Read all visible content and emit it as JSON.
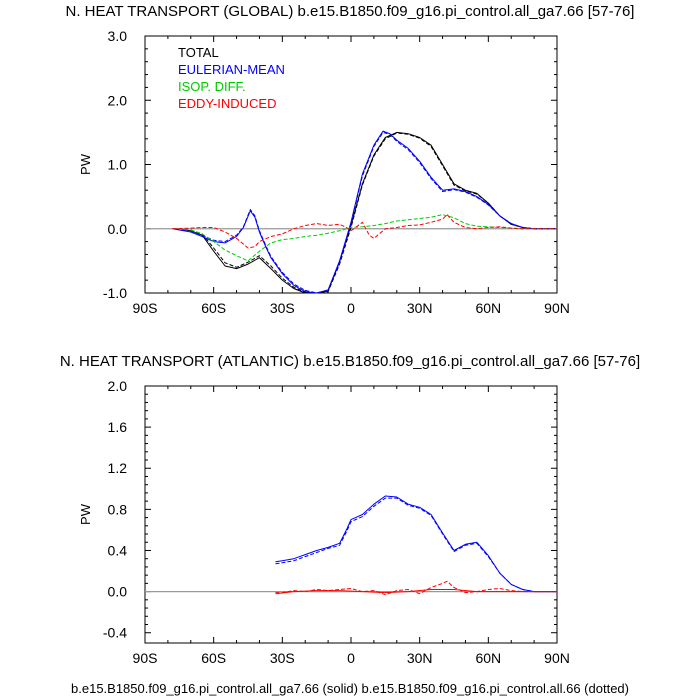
{
  "footer": "b.e15.B1850.f09_g16.pi_control.all_ga7.66 (solid) b.e15.B1850.f09_g16.pi_control.all.66 (dotted)",
  "chart_data": [
    {
      "type": "line",
      "title": "N. HEAT TRANSPORT (GLOBAL) b.e15.B1850.f09_g16.pi_control.all_ga7.66 [57-76]",
      "ylabel": "PW",
      "xlim": [
        -90,
        90
      ],
      "ylim": [
        -1,
        3
      ],
      "xticks": [
        {
          "v": -90,
          "label": "90S"
        },
        {
          "v": -60,
          "label": "60S"
        },
        {
          "v": -30,
          "label": "30S"
        },
        {
          "v": 0,
          "label": "0"
        },
        {
          "v": 30,
          "label": "30N"
        },
        {
          "v": 60,
          "label": "60N"
        },
        {
          "v": 90,
          "label": "90N"
        }
      ],
      "yticks": [
        {
          "v": -1,
          "label": "-1.0"
        },
        {
          "v": 0,
          "label": "0.0"
        },
        {
          "v": 1,
          "label": "1.0"
        },
        {
          "v": 2,
          "label": "2.0"
        },
        {
          "v": 3,
          "label": "3.0"
        }
      ],
      "legend": [
        {
          "label": "TOTAL",
          "color": "#000000"
        },
        {
          "label": "EULERIAN-MEAN",
          "color": "#0000ff"
        },
        {
          "label": "ISOP. DIFF.",
          "color": "#00cc00"
        },
        {
          "label": "EDDY-INDUCED",
          "color": "#ff0000"
        }
      ],
      "legend_position": "top-left",
      "zero_line": true,
      "series": [
        {
          "color": "#000000",
          "style": "solid",
          "x": [
            -78,
            -70,
            -65,
            -60,
            -55,
            -50,
            -45,
            -40,
            -35,
            -30,
            -25,
            -20,
            -15,
            -10,
            -5,
            0,
            5,
            10,
            15,
            20,
            25,
            30,
            35,
            40,
            45,
            50,
            55,
            60,
            65,
            70,
            75,
            80,
            85,
            90
          ],
          "y": [
            0,
            -0.03,
            -0.1,
            -0.35,
            -0.58,
            -0.62,
            -0.55,
            -0.45,
            -0.62,
            -0.8,
            -0.93,
            -1.0,
            -1.02,
            -0.97,
            -0.5,
            0.05,
            0.7,
            1.15,
            1.42,
            1.5,
            1.48,
            1.42,
            1.3,
            1.0,
            0.7,
            0.6,
            0.55,
            0.4,
            0.2,
            0.07,
            0.02,
            0,
            0,
            0
          ]
        },
        {
          "color": "#000000",
          "style": "dotted",
          "x": [
            -78,
            -70,
            -65,
            -60,
            -55,
            -50,
            -45,
            -40,
            -35,
            -30,
            -25,
            -20,
            -15,
            -10,
            -5,
            0,
            5,
            10,
            15,
            20,
            25,
            30,
            35,
            40,
            45,
            50,
            55,
            60,
            65,
            70,
            75,
            80,
            85,
            90
          ],
          "y": [
            0,
            -0.02,
            -0.08,
            -0.3,
            -0.53,
            -0.6,
            -0.52,
            -0.42,
            -0.58,
            -0.77,
            -0.91,
            -0.99,
            -1.02,
            -0.98,
            -0.55,
            0.02,
            0.68,
            1.13,
            1.4,
            1.49,
            1.47,
            1.41,
            1.28,
            0.98,
            0.68,
            0.59,
            0.54,
            0.4,
            0.2,
            0.07,
            0.02,
            0,
            0,
            0
          ]
        },
        {
          "color": "#0000ff",
          "style": "solid",
          "x": [
            -78,
            -70,
            -65,
            -60,
            -55,
            -50,
            -47,
            -44,
            -42,
            -40,
            -37,
            -35,
            -30,
            -25,
            -20,
            -15,
            -10,
            -5,
            0,
            5,
            10,
            14,
            17,
            20,
            25,
            30,
            35,
            40,
            45,
            50,
            55,
            60,
            65,
            70,
            75,
            80,
            85,
            90
          ],
          "y": [
            0,
            -0.05,
            -0.12,
            -0.2,
            -0.22,
            -0.12,
            0.02,
            0.28,
            0.18,
            -0.05,
            -0.3,
            -0.45,
            -0.7,
            -0.88,
            -0.98,
            -1.0,
            -0.95,
            -0.5,
            0.1,
            0.85,
            1.3,
            1.52,
            1.48,
            1.38,
            1.25,
            1.05,
            0.8,
            0.6,
            0.62,
            0.58,
            0.5,
            0.38,
            0.2,
            0.08,
            0.02,
            0,
            0,
            0
          ]
        },
        {
          "color": "#0000ff",
          "style": "dotted",
          "x": [
            -78,
            -70,
            -65,
            -60,
            -55,
            -50,
            -47,
            -44,
            -42,
            -40,
            -37,
            -35,
            -30,
            -25,
            -20,
            -15,
            -10,
            -5,
            0,
            5,
            10,
            14,
            17,
            20,
            25,
            30,
            35,
            40,
            45,
            50,
            55,
            60,
            65,
            70,
            75,
            80,
            85,
            90
          ],
          "y": [
            0,
            -0.04,
            -0.1,
            -0.18,
            -0.2,
            -0.1,
            0.03,
            0.3,
            0.2,
            -0.03,
            -0.28,
            -0.43,
            -0.68,
            -0.86,
            -0.96,
            -1.0,
            -0.96,
            -0.52,
            0.08,
            0.82,
            1.28,
            1.5,
            1.47,
            1.36,
            1.23,
            1.03,
            0.78,
            0.58,
            0.61,
            0.57,
            0.49,
            0.37,
            0.2,
            0.08,
            0.02,
            0,
            0,
            0
          ]
        },
        {
          "color": "#00cc00",
          "style": "dotted",
          "x": [
            -78,
            -70,
            -65,
            -60,
            -55,
            -50,
            -45,
            -40,
            -35,
            -30,
            -25,
            -20,
            -15,
            -10,
            -5,
            0,
            5,
            10,
            15,
            20,
            25,
            30,
            35,
            40,
            45,
            50,
            55,
            60,
            65,
            70,
            75,
            80,
            90
          ],
          "y": [
            0,
            -0.02,
            -0.08,
            -0.2,
            -0.33,
            -0.42,
            -0.5,
            -0.35,
            -0.22,
            -0.17,
            -0.15,
            -0.12,
            -0.1,
            -0.07,
            -0.03,
            0.02,
            0.03,
            0.05,
            0.08,
            0.12,
            0.14,
            0.16,
            0.18,
            0.22,
            0.17,
            0.08,
            0.04,
            0.03,
            0.02,
            0.01,
            0,
            0,
            0
          ]
        },
        {
          "color": "#ff0000",
          "style": "dotted",
          "x": [
            -78,
            -70,
            -65,
            -60,
            -55,
            -50,
            -45,
            -42,
            -40,
            -35,
            -30,
            -25,
            -20,
            -15,
            -10,
            -5,
            -2,
            0,
            2,
            5,
            8,
            10,
            15,
            20,
            25,
            30,
            35,
            40,
            42,
            45,
            50,
            55,
            60,
            65,
            70,
            75,
            80,
            90
          ],
          "y": [
            0,
            0.01,
            0.02,
            0.02,
            -0.05,
            -0.15,
            -0.3,
            -0.28,
            -0.2,
            -0.12,
            -0.08,
            0.0,
            0.05,
            0.08,
            0.05,
            0.07,
            0.02,
            -0.03,
            0.02,
            0.1,
            -0.1,
            -0.15,
            0.0,
            0.02,
            0.05,
            0.06,
            0.1,
            0.15,
            0.22,
            0.1,
            0.02,
            0.0,
            0.02,
            0.03,
            0.01,
            0,
            0,
            0
          ]
        }
      ]
    },
    {
      "type": "line",
      "title": "N. HEAT TRANSPORT (ATLANTIC) b.e15.B1850.f09_g16.pi_control.all_ga7.66 [57-76]",
      "ylabel": "PW",
      "xlim": [
        -90,
        90
      ],
      "ylim": [
        -0.5,
        2.0
      ],
      "xticks": [
        {
          "v": -90,
          "label": "90S"
        },
        {
          "v": -60,
          "label": "60S"
        },
        {
          "v": -30,
          "label": "30S"
        },
        {
          "v": 0,
          "label": "0"
        },
        {
          "v": 30,
          "label": "30N"
        },
        {
          "v": 60,
          "label": "60N"
        },
        {
          "v": 90,
          "label": "90N"
        }
      ],
      "yticks": [
        {
          "v": -0.4,
          "label": "-0.4"
        },
        {
          "v": 0.0,
          "label": "0.0"
        },
        {
          "v": 0.4,
          "label": "0.4"
        },
        {
          "v": 0.8,
          "label": "0.8"
        },
        {
          "v": 1.2,
          "label": "1.2"
        },
        {
          "v": 1.6,
          "label": "1.6"
        },
        {
          "v": 2.0,
          "label": "2.0"
        }
      ],
      "zero_line": true,
      "series": [
        {
          "color": "#0000ff",
          "style": "solid",
          "x": [
            -33,
            -30,
            -25,
            -20,
            -15,
            -10,
            -5,
            -2,
            0,
            2,
            5,
            10,
            15,
            20,
            25,
            30,
            35,
            40,
            45,
            50,
            55,
            60,
            65,
            70,
            75,
            80,
            85,
            90
          ],
          "y": [
            0.29,
            0.3,
            0.32,
            0.36,
            0.4,
            0.43,
            0.47,
            0.6,
            0.7,
            0.72,
            0.75,
            0.85,
            0.93,
            0.92,
            0.85,
            0.82,
            0.75,
            0.57,
            0.4,
            0.46,
            0.48,
            0.35,
            0.18,
            0.07,
            0.02,
            0.0,
            0.0,
            0.0
          ]
        },
        {
          "color": "#0000ff",
          "style": "dotted",
          "x": [
            -33,
            -30,
            -25,
            -20,
            -15,
            -10,
            -5,
            -2,
            0,
            2,
            5,
            10,
            15,
            20,
            25,
            30,
            35,
            40,
            45,
            50,
            55,
            60,
            65,
            70,
            75,
            80,
            85,
            90
          ],
          "y": [
            0.27,
            0.28,
            0.3,
            0.34,
            0.38,
            0.42,
            0.45,
            0.58,
            0.68,
            0.7,
            0.73,
            0.83,
            0.91,
            0.91,
            0.84,
            0.81,
            0.74,
            0.56,
            0.39,
            0.45,
            0.47,
            0.34,
            0.18,
            0.07,
            0.02,
            0.0,
            0.0,
            0.0
          ]
        },
        {
          "color": "#ff0000",
          "style": "dotted",
          "x": [
            -33,
            -30,
            -25,
            -20,
            -15,
            -10,
            -5,
            0,
            5,
            10,
            15,
            20,
            25,
            30,
            35,
            40,
            42,
            45,
            50,
            55,
            60,
            65,
            70,
            75,
            80,
            85,
            90
          ],
          "y": [
            -0.01,
            -0.01,
            0.01,
            0.0,
            0.02,
            0.01,
            0.02,
            0.03,
            0.0,
            0.01,
            -0.03,
            0.01,
            0.02,
            -0.02,
            0.04,
            0.08,
            0.1,
            0.04,
            -0.01,
            0.0,
            0.02,
            0.03,
            0.01,
            0.0,
            0.0,
            0.0,
            0.0
          ]
        },
        {
          "color": "#ff0000",
          "style": "solid",
          "x": [
            -33,
            -25,
            -15,
            -5,
            5,
            15,
            25,
            35,
            45,
            55,
            65,
            75,
            90
          ],
          "y": [
            -0.02,
            0.0,
            0.01,
            0.01,
            0.0,
            -0.01,
            0.0,
            0.02,
            0.02,
            0.0,
            0.0,
            0.0,
            0.0
          ]
        }
      ]
    }
  ]
}
